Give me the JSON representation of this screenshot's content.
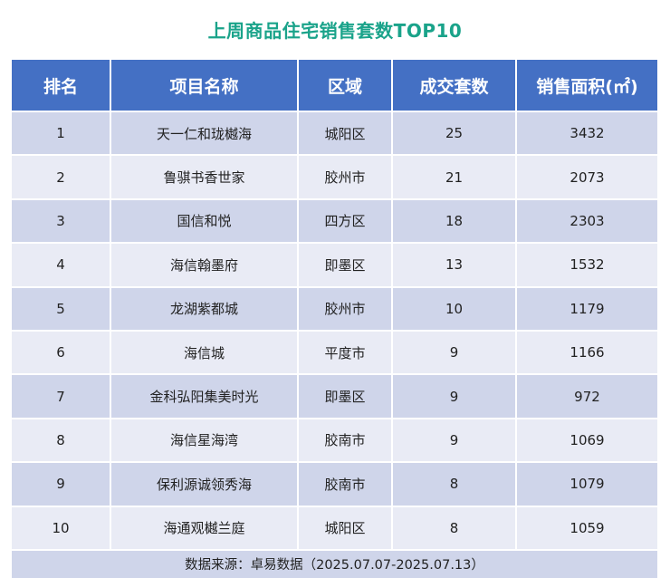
{
  "title": "上周商品住宅销售套数TOP10",
  "columns": [
    "排名",
    "项目名称",
    "区域",
    "成交套数",
    "销售面积(㎡)"
  ],
  "rows": [
    [
      "1",
      "天一仁和珑樾海",
      "城阳区",
      "25",
      "3432"
    ],
    [
      "2",
      "鲁骐书香世家",
      "胶州市",
      "21",
      "2073"
    ],
    [
      "3",
      "国信和悦",
      "四方区",
      "18",
      "2303"
    ],
    [
      "4",
      "海信翰墨府",
      "即墨区",
      "13",
      "1532"
    ],
    [
      "5",
      "龙湖紫都城",
      "胶州市",
      "10",
      "1179"
    ],
    [
      "6",
      "海信城",
      "平度市",
      "9",
      "1166"
    ],
    [
      "7",
      "金科弘阳集美时光",
      "即墨区",
      "9",
      "972"
    ],
    [
      "8",
      "海信星海湾",
      "胶南市",
      "9",
      "1069"
    ],
    [
      "9",
      "保利源诚领秀海",
      "胶南市",
      "8",
      "1079"
    ],
    [
      "10",
      "海通观樾兰庭",
      "城阳区",
      "8",
      "1059"
    ]
  ],
  "footer": "数据来源：卓易数据（2025.07.07-2025.07.13）",
  "colors": {
    "title": "#1aa38a",
    "header_bg": "#4470c4",
    "row_dark": "#cfd5ea",
    "row_light": "#e9ebf5"
  }
}
